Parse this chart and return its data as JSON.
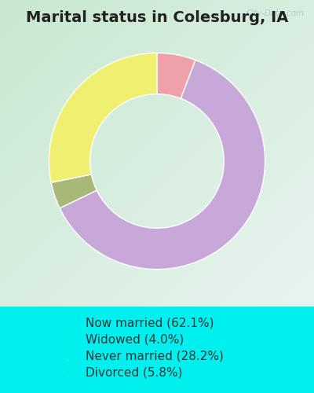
{
  "title": "Marital status in Colesburg, IA",
  "categories": [
    "Now married",
    "Widowed",
    "Never married",
    "Divorced"
  ],
  "values": [
    62.1,
    4.0,
    28.2,
    5.8
  ],
  "colors": [
    "#c8a8d8",
    "#a8b878",
    "#f0f070",
    "#f0a0a8"
  ],
  "legend_labels": [
    "Now married (62.1%)",
    "Widowed (4.0%)",
    "Never married (28.2%)",
    "Divorced (5.8%)"
  ],
  "outer_bg": "#00f0f0",
  "chart_bg_left": "#d8ede0",
  "chart_bg_right": "#e8f4f0",
  "watermark": "City-Data.com",
  "title_fontsize": 14,
  "legend_fontsize": 11,
  "donut_width": 0.38
}
